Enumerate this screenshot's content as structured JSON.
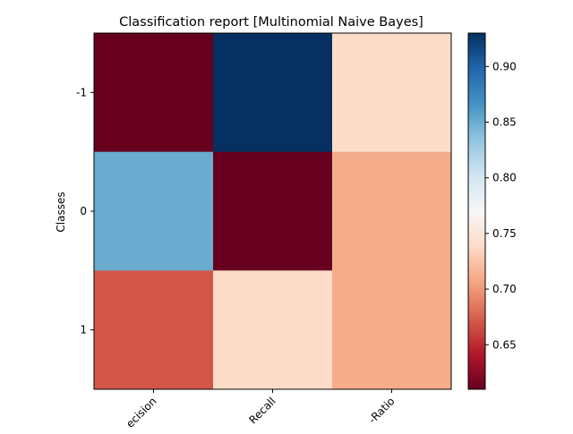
{
  "chart_data": {
    "type": "heatmap",
    "title": "Classification report  [Multinomial Naive Bayes]",
    "ylabel": "Classes",
    "xlabel": "",
    "x_categories": [
      "precision",
      "Recall",
      "F-Ratio"
    ],
    "x_tick_labels_visible": [
      "ecision",
      "Recall",
      "-Ratio"
    ],
    "y_categories": [
      "-1",
      "0",
      "1"
    ],
    "values": [
      [
        0.61,
        0.93,
        0.74
      ],
      [
        0.85,
        0.61,
        0.71
      ],
      [
        0.67,
        0.74,
        0.71
      ]
    ],
    "colorbar": {
      "colormap": "RdBu",
      "range": [
        0.61,
        0.93
      ],
      "ticks": [
        "0.65",
        "0.70",
        "0.75",
        "0.80",
        "0.85",
        "0.90"
      ],
      "tick_values": [
        0.65,
        0.7,
        0.75,
        0.8,
        0.85,
        0.9
      ]
    },
    "grid": false,
    "legend": "colorbar-right"
  }
}
